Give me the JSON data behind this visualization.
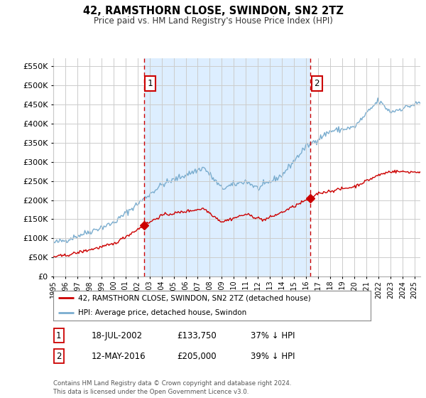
{
  "title": "42, RAMSTHORN CLOSE, SWINDON, SN2 2TZ",
  "subtitle": "Price paid vs. HM Land Registry's House Price Index (HPI)",
  "ylabel_ticks": [
    "£0",
    "£50K",
    "£100K",
    "£150K",
    "£200K",
    "£250K",
    "£300K",
    "£350K",
    "£400K",
    "£450K",
    "£500K",
    "£550K"
  ],
  "ytick_values": [
    0,
    50000,
    100000,
    150000,
    200000,
    250000,
    300000,
    350000,
    400000,
    450000,
    500000,
    550000
  ],
  "ylim": [
    0,
    570000
  ],
  "sale1_date": 2002.54,
  "sale1_price": 133750,
  "sale2_date": 2016.36,
  "sale2_price": 205000,
  "sale1_text": "18-JUL-2002",
  "sale1_amount": "£133,750",
  "sale1_hpi": "37% ↓ HPI",
  "sale2_text": "12-MAY-2016",
  "sale2_amount": "£205,000",
  "sale2_hpi": "39% ↓ HPI",
  "legend_line1": "42, RAMSTHORN CLOSE, SWINDON, SN2 2TZ (detached house)",
  "legend_line2": "HPI: Average price, detached house, Swindon",
  "footer": "Contains HM Land Registry data © Crown copyright and database right 2024.\nThis data is licensed under the Open Government Licence v3.0.",
  "price_color": "#cc0000",
  "hpi_color": "#7aadcf",
  "shade_color": "#ddeeff",
  "vline_color": "#cc0000",
  "background_color": "#ffffff",
  "grid_color": "#cccccc",
  "xmin": 1995,
  "xmax": 2025.5
}
